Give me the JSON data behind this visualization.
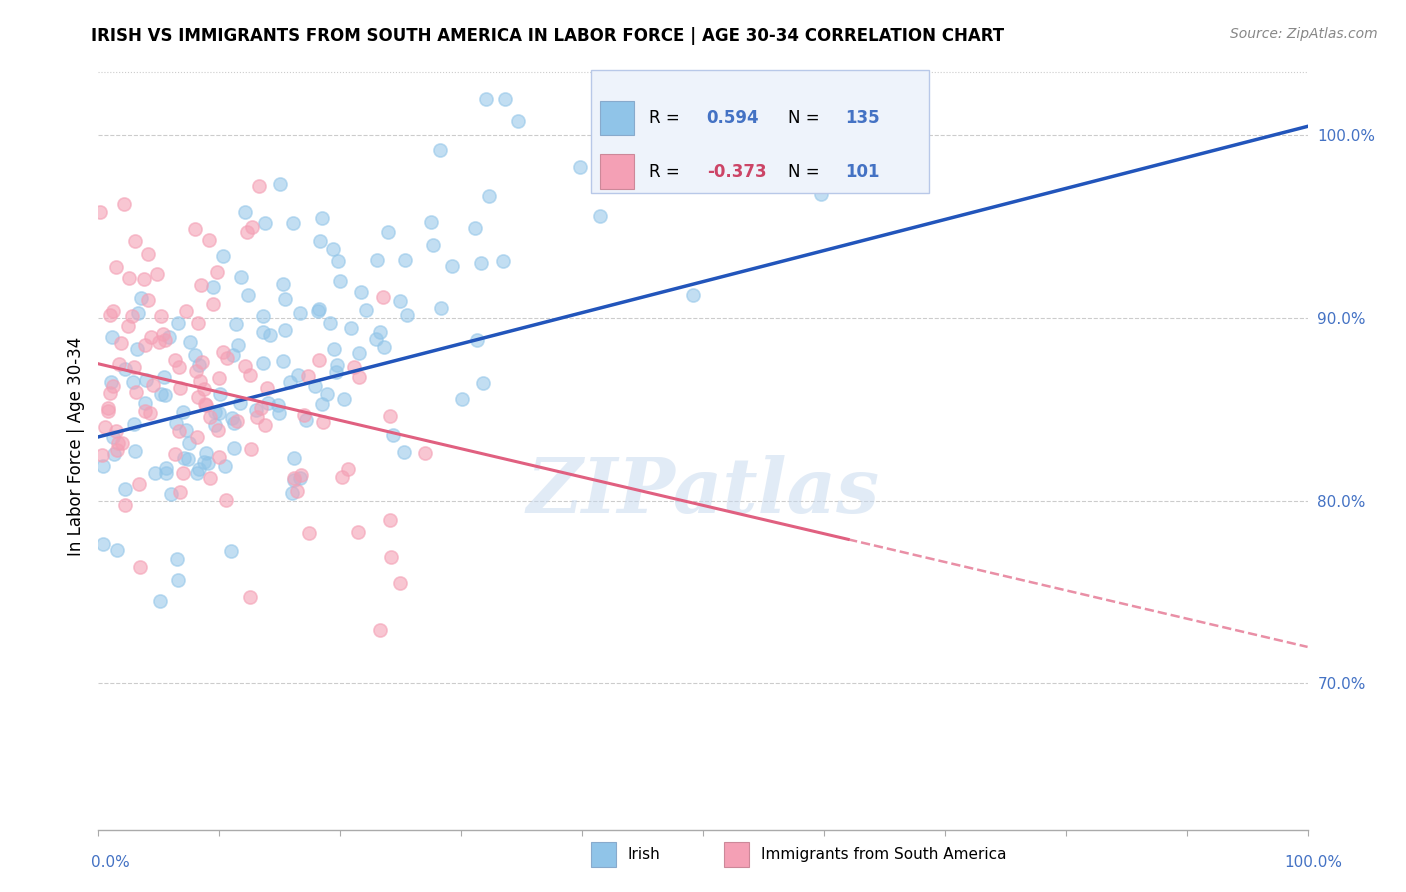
{
  "title": "IRISH VS IMMIGRANTS FROM SOUTH AMERICA IN LABOR FORCE | AGE 30-34 CORRELATION CHART",
  "source": "Source: ZipAtlas.com",
  "ylabel": "In Labor Force | Age 30-34",
  "right_yticks": [
    "70.0%",
    "80.0%",
    "90.0%",
    "100.0%"
  ],
  "right_ytick_vals": [
    0.7,
    0.8,
    0.9,
    1.0
  ],
  "legend_label1": "Irish",
  "legend_label2": "Immigrants from South America",
  "R1": 0.594,
  "N1": 135,
  "R2": -0.373,
  "N2": 101,
  "color_blue": "#90c4e8",
  "color_pink": "#f4a0b5",
  "color_blue_line": "#2255bb",
  "color_pink_line": "#e06080",
  "color_blue_text": "#4472c4",
  "color_pink_text": "#cc4466",
  "watermark": "ZIPatlas",
  "xmin": 0.0,
  "xmax": 1.0,
  "ymin": 0.62,
  "ymax": 1.04,
  "figwidth": 14.06,
  "figheight": 8.92,
  "dpi": 100,
  "blue_trend_x0": 0.0,
  "blue_trend_y0": 0.835,
  "blue_trend_x1": 1.0,
  "blue_trend_y1": 1.005,
  "pink_trend_x0": 0.0,
  "pink_trend_y0": 0.875,
  "pink_trend_x1": 1.0,
  "pink_trend_y1": 0.72
}
